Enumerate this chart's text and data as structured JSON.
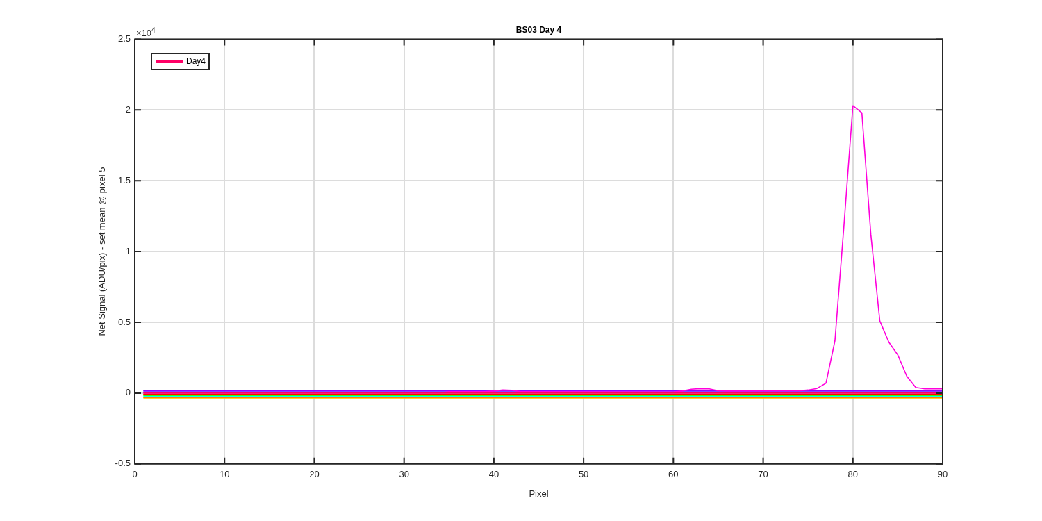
{
  "chart_data": {
    "type": "line",
    "title": "BS03 Day 4",
    "xlabel": "Pixel",
    "ylabel": "Net Signal (ADU/pix) - set mean @ pixel 5",
    "annotations": [
      "×10$^{4}$"
    ],
    "xlim": [
      0,
      90
    ],
    "xticks": [
      0,
      10,
      20,
      30,
      40,
      50,
      60,
      70,
      80,
      90
    ],
    "ylim": [
      -0.5,
      2.5
    ],
    "yticks": [
      -0.5,
      0,
      0.5,
      1,
      1.5,
      2,
      2.5
    ],
    "grid": true,
    "legend": "top left",
    "series": [
      {
        "name": "Day4",
        "color": "#ff0066",
        "x": [
          1,
          90
        ],
        "values": [
          0,
          0
        ]
      },
      {
        "color": "#ff00dd",
        "x": [
          1,
          34,
          35,
          39,
          40,
          41,
          42,
          43,
          60,
          61,
          62,
          63,
          64,
          65,
          66,
          74,
          75,
          76,
          77,
          78,
          79,
          80,
          81,
          82,
          83,
          84,
          85,
          86,
          87,
          88,
          89,
          90
        ],
        "values": [
          0.002,
          0.002,
          0.01,
          0.01,
          0.015,
          0.022,
          0.02,
          0.01,
          0.008,
          0.015,
          0.028,
          0.032,
          0.03,
          0.017,
          0.015,
          0.017,
          0.022,
          0.033,
          0.07,
          0.37,
          1.18,
          2.03,
          1.98,
          1.12,
          0.51,
          0.36,
          0.27,
          0.12,
          0.04,
          0.03,
          0.03,
          0.03
        ]
      },
      {
        "color": "#9900ff",
        "x": [
          1,
          90
        ],
        "values": [
          0.016,
          0.016
        ]
      },
      {
        "color": "#0000ff",
        "x": [
          1,
          90
        ],
        "values": [
          0.008,
          0.008
        ]
      },
      {
        "color": "#ff0000",
        "x": [
          1,
          90
        ],
        "values": [
          -0.008,
          -0.008
        ]
      },
      {
        "color": "#33ff00",
        "x": [
          1,
          90
        ],
        "values": [
          -0.016,
          -0.016
        ]
      },
      {
        "color": "#00ffff",
        "x": [
          1,
          90
        ],
        "values": [
          -0.024,
          -0.024
        ]
      },
      {
        "color": "#ff8000",
        "x": [
          1,
          90
        ],
        "values": [
          -0.032,
          -0.032
        ]
      },
      {
        "color": "#ffe000",
        "x": [
          1,
          90
        ],
        "values": [
          -0.04,
          -0.04
        ]
      }
    ]
  }
}
